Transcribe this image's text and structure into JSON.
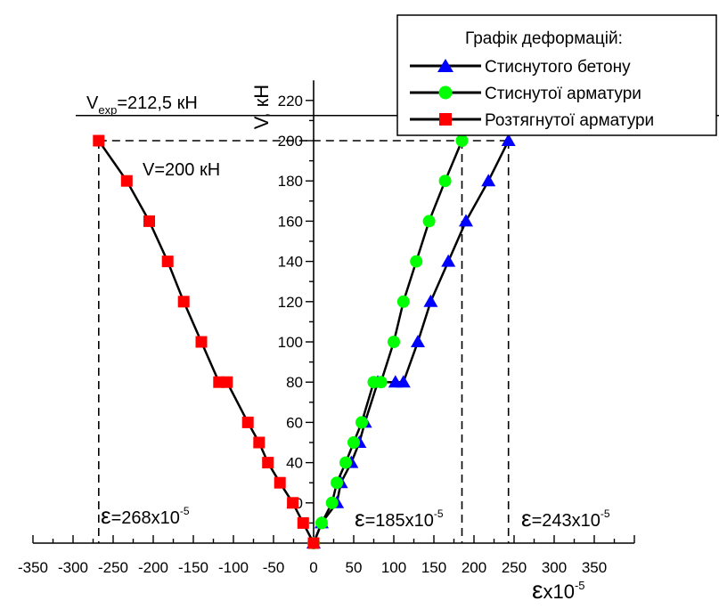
{
  "chart_data": {
    "type": "line",
    "legend": {
      "title": "Графік деформацій:",
      "placement": "top-right"
    },
    "xlabel": {
      "symbol": "ε",
      "text": "x10",
      "exp": "-5"
    },
    "ylabel": "V, кН",
    "xlim": [
      -350,
      400
    ],
    "ylim": [
      0,
      220
    ],
    "x_ticks": [
      -350,
      -300,
      -250,
      -200,
      -150,
      -100,
      -50,
      0,
      50,
      100,
      150,
      200,
      250,
      300,
      350
    ],
    "y_ticks": [
      20,
      40,
      60,
      80,
      100,
      120,
      140,
      160,
      180,
      200,
      220
    ],
    "series": [
      {
        "name": "Стиснутого бетону",
        "marker": "triangle",
        "color": "#0000ff",
        "x": [
          0,
          10,
          29,
          34,
          47,
          57,
          64,
          80,
          102,
          112,
          130,
          146,
          168,
          190,
          218,
          243
        ],
        "y": [
          0,
          10,
          20,
          30,
          40,
          50,
          60,
          80,
          80,
          80,
          100,
          120,
          140,
          160,
          180,
          200
        ]
      },
      {
        "name": "Стиснутої арматури",
        "marker": "circle",
        "color": "#00ff00",
        "x": [
          0,
          10,
          23,
          29,
          40,
          50,
          60,
          75,
          84,
          100,
          112,
          128,
          144,
          164,
          185
        ],
        "y": [
          0,
          10,
          20,
          30,
          40,
          50,
          60,
          80,
          80,
          100,
          120,
          140,
          160,
          180,
          200
        ]
      },
      {
        "name": "Розтягнутої арматури",
        "marker": "square",
        "color": "#ff0000",
        "x": [
          0,
          -13,
          -26,
          -42,
          -57,
          -68,
          -82,
          -140,
          -118,
          -108,
          -162,
          -182,
          -205,
          -233,
          -268
        ],
        "y": [
          0,
          10,
          20,
          30,
          40,
          50,
          60,
          100,
          80,
          80,
          120,
          140,
          160,
          180,
          200
        ]
      }
    ],
    "reference_lines": {
      "v_exp": {
        "value": 212.5,
        "label_base": "V",
        "label_sub": "exp",
        "label_rest": "=212,5 кН"
      },
      "v_200": {
        "value": 200,
        "label": "V=200 кН"
      }
    },
    "annotations": [
      {
        "x": -268,
        "symbol": "ε",
        "text": "=268x10",
        "exp": "-5"
      },
      {
        "x": 185,
        "symbol": "ε",
        "text": "=185x10",
        "exp": "-5"
      },
      {
        "x": 243,
        "symbol": "ε",
        "text": "=243x10",
        "exp": "-5"
      }
    ]
  }
}
